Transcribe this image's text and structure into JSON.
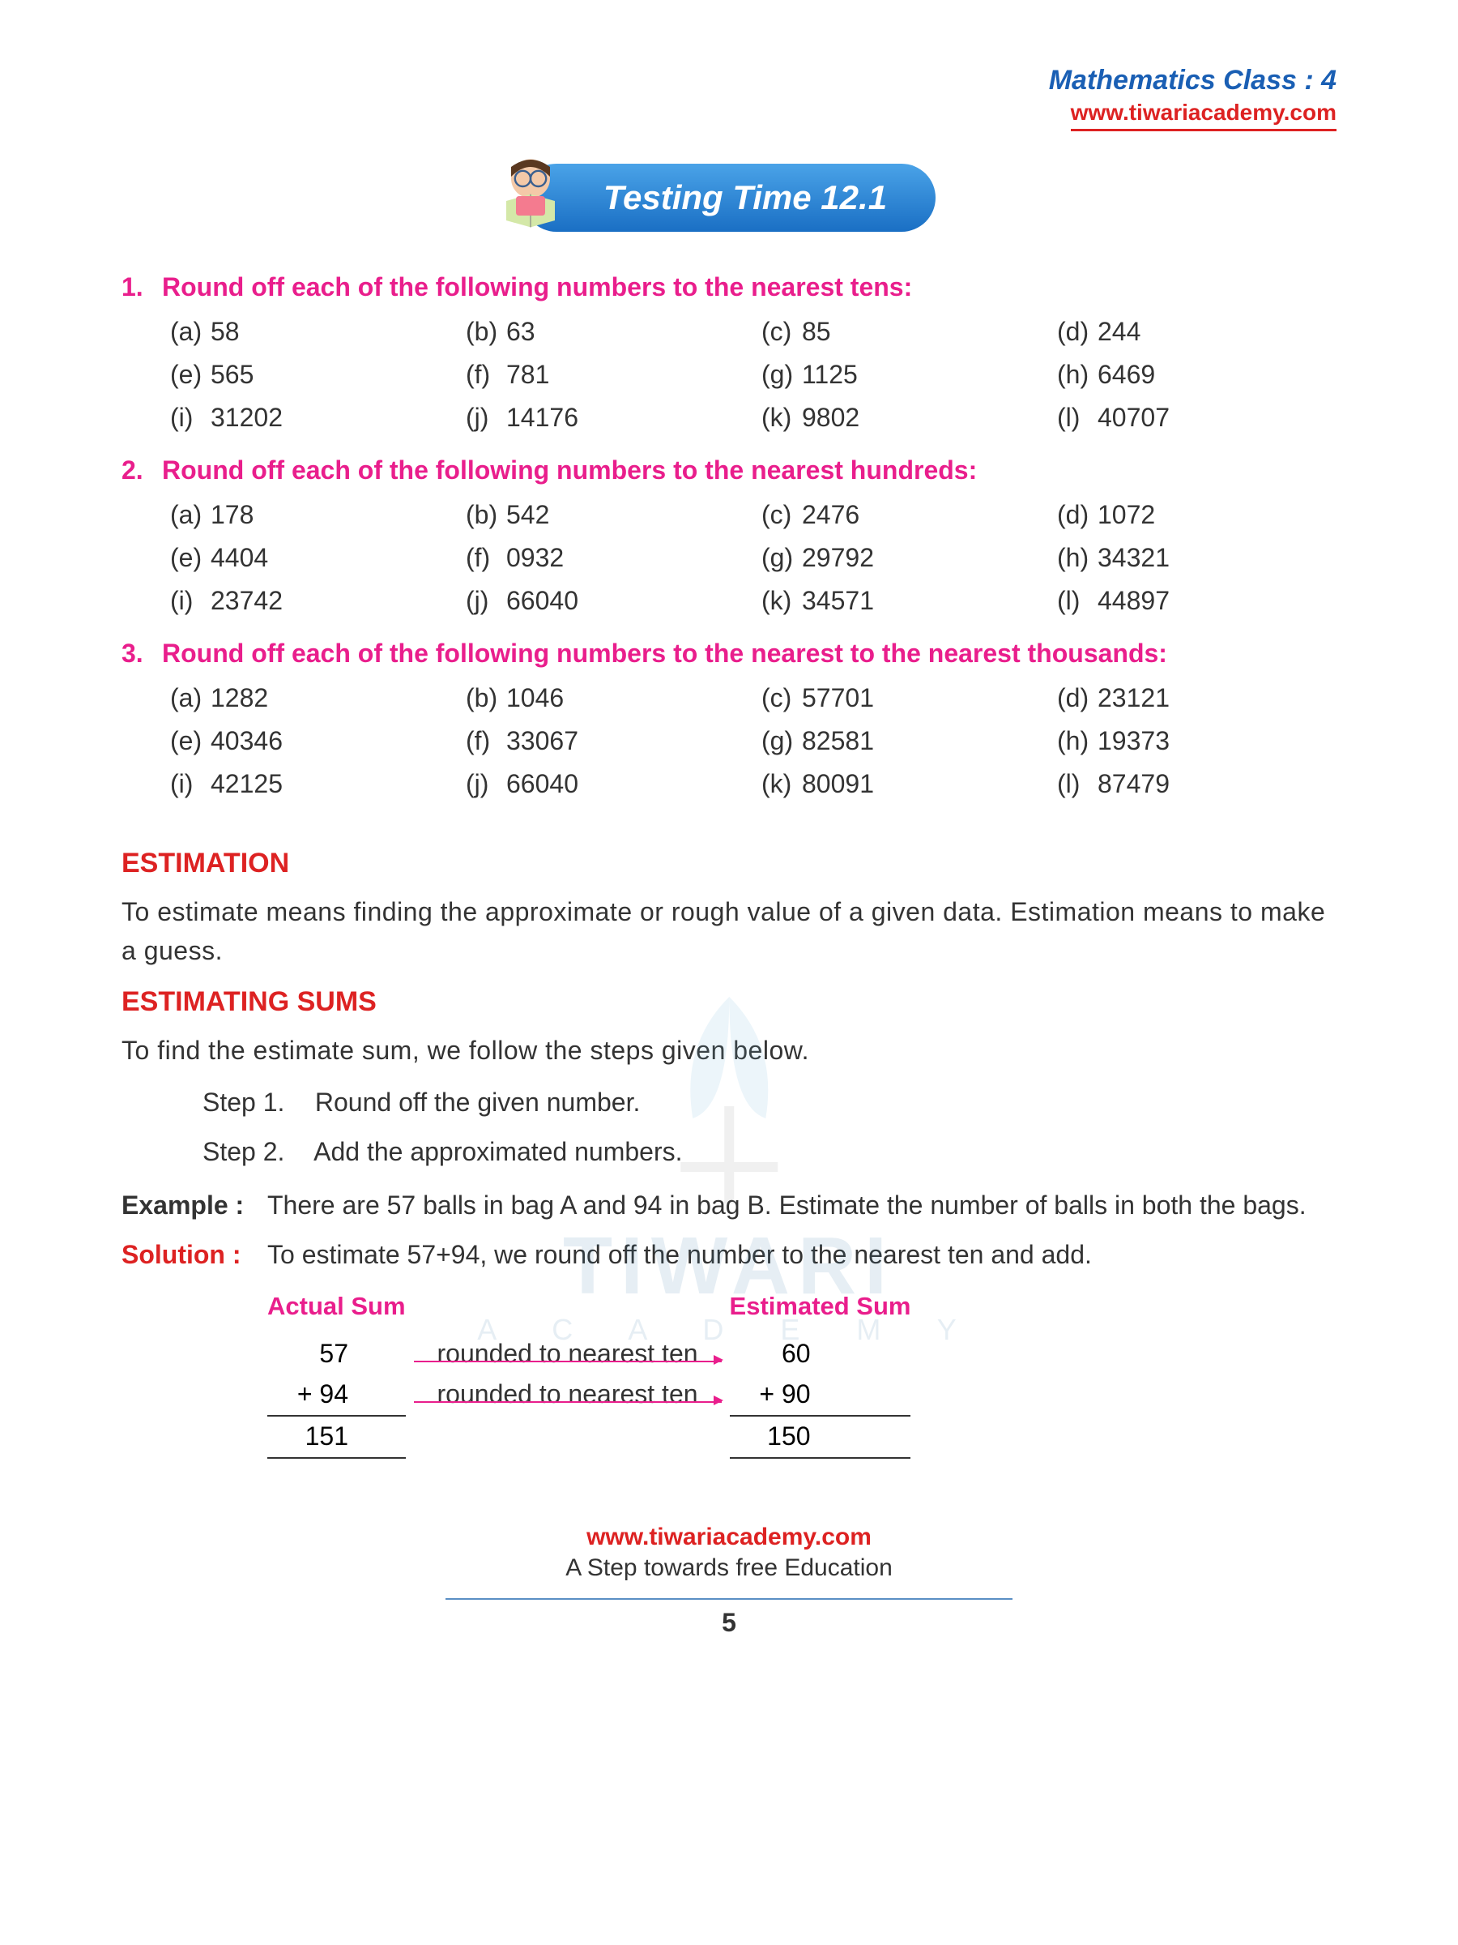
{
  "header": {
    "title": "Mathematics Class : 4",
    "link": "www.tiwariacademy.com"
  },
  "banner": {
    "title": "Testing Time 12.1"
  },
  "questions": [
    {
      "num": "1.",
      "text": "Round off each of the following numbers to the nearest tens:",
      "items": [
        {
          "label": "(a)",
          "val": "58"
        },
        {
          "label": "(b)",
          "val": "63"
        },
        {
          "label": "(c)",
          "val": "85"
        },
        {
          "label": "(d)",
          "val": "244"
        },
        {
          "label": "(e)",
          "val": "565"
        },
        {
          "label": "(f)",
          "val": "781"
        },
        {
          "label": "(g)",
          "val": "1125"
        },
        {
          "label": "(h)",
          "val": "6469"
        },
        {
          "label": "(i)",
          "val": "31202"
        },
        {
          "label": "(j)",
          "val": "14176"
        },
        {
          "label": "(k)",
          "val": "9802"
        },
        {
          "label": "(l)",
          "val": "40707"
        }
      ]
    },
    {
      "num": "2.",
      "text": "Round off each of the following numbers to the nearest hundreds:",
      "items": [
        {
          "label": "(a)",
          "val": "178"
        },
        {
          "label": "(b)",
          "val": "542"
        },
        {
          "label": "(c)",
          "val": "2476"
        },
        {
          "label": "(d)",
          "val": "1072"
        },
        {
          "label": "(e)",
          "val": "4404"
        },
        {
          "label": "(f)",
          "val": "0932"
        },
        {
          "label": "(g)",
          "val": "29792"
        },
        {
          "label": "(h)",
          "val": "34321"
        },
        {
          "label": "(i)",
          "val": "23742"
        },
        {
          "label": "(j)",
          "val": "66040"
        },
        {
          "label": "(k)",
          "val": "34571"
        },
        {
          "label": "(l)",
          "val": "44897"
        }
      ]
    },
    {
      "num": "3.",
      "text": "Round off each of the following numbers to the nearest to the nearest thousands:",
      "items": [
        {
          "label": "(a)",
          "val": "1282"
        },
        {
          "label": "(b)",
          "val": "1046"
        },
        {
          "label": "(c)",
          "val": "57701"
        },
        {
          "label": "(d)",
          "val": "23121"
        },
        {
          "label": "(e)",
          "val": "40346"
        },
        {
          "label": "(f)",
          "val": "33067"
        },
        {
          "label": "(g)",
          "val": "82581"
        },
        {
          "label": "(h)",
          "val": "19373"
        },
        {
          "label": "(i)",
          "val": "42125"
        },
        {
          "label": "(j)",
          "val": "66040"
        },
        {
          "label": "(k)",
          "val": "80091"
        },
        {
          "label": "(l)",
          "val": "87479"
        }
      ]
    }
  ],
  "estimation": {
    "heading": "ESTIMATION",
    "text": "To estimate means finding the approximate or rough value of a given data. Estimation means to make a guess."
  },
  "estimating_sums": {
    "heading": "ESTIMATING SUMS",
    "intro": "To find the estimate sum, we follow the steps given below.",
    "step1_label": "Step 1.",
    "step1_text": "Round off the given number.",
    "step2_label": "Step 2.",
    "step2_text": "Add the approximated numbers."
  },
  "example": {
    "label": "Example :",
    "text": "There are 57 balls in bag A and 94 in bag B. Estimate the number of balls in both the bags."
  },
  "solution": {
    "label": "Solution :",
    "text": "To estimate 57+94, we round off the number to the nearest ten and add."
  },
  "sums": {
    "actual_heading": "Actual Sum",
    "estimated_heading": "Estimated Sum",
    "rows": [
      {
        "a": "57",
        "arrow": "rounded to nearest ten",
        "b": "60"
      },
      {
        "a": "+ 94",
        "arrow": "rounded to nearest ten",
        "b": "+ 90"
      }
    ],
    "total_a": "151",
    "total_b": "150"
  },
  "watermark": {
    "main": "TIWARI",
    "sub": "A C A D E M Y"
  },
  "footer": {
    "link": "www.tiwariacademy.com",
    "tagline": "A Step towards free Education",
    "page": "5"
  },
  "colors": {
    "pink": "#e91e8c",
    "red": "#d22",
    "blue": "#1a5fb4"
  }
}
